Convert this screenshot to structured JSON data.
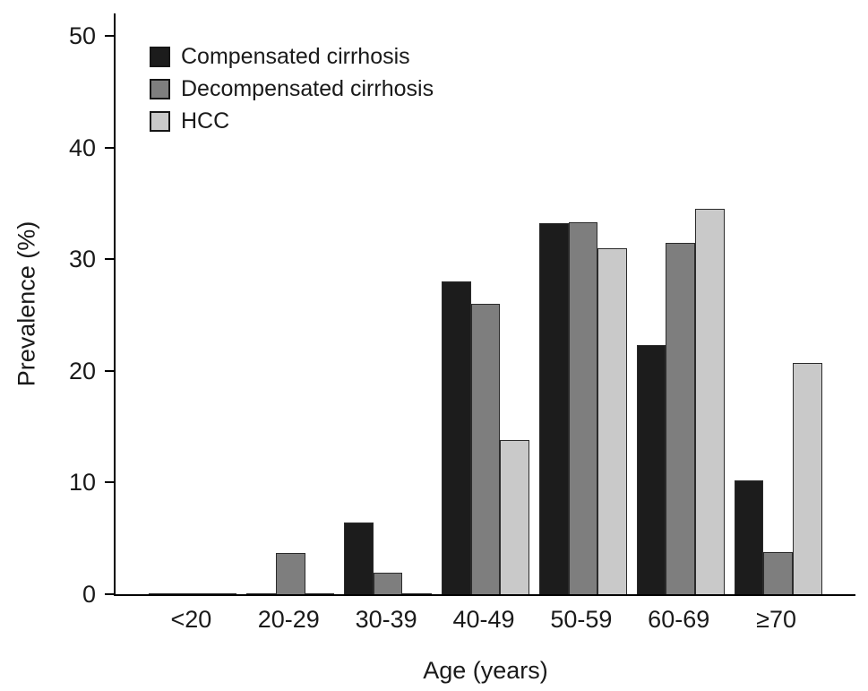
{
  "chart_data": {
    "type": "bar",
    "title": "",
    "xlabel": "Age (years)",
    "ylabel": "Prevalence (%)",
    "ylim": [
      0,
      50
    ],
    "yticks": [
      0,
      10,
      20,
      30,
      40,
      50
    ],
    "grid": false,
    "legend_position": "top-left",
    "categories": [
      "<20",
      "20-29",
      "30-39",
      "40-49",
      "50-59",
      "60-69",
      "≥70"
    ],
    "series": [
      {
        "name": "Compensated cirrhosis",
        "color": "#1c1c1c",
        "values": [
          0.1,
          0.1,
          6.4,
          28.0,
          33.2,
          22.3,
          10.2
        ]
      },
      {
        "name": "Decompensated cirrhosis",
        "color": "#7e7e7e",
        "values": [
          0.1,
          3.7,
          1.9,
          26.0,
          33.3,
          31.5,
          3.8
        ]
      },
      {
        "name": "HCC",
        "color": "#c9c9c9",
        "values": [
          0.1,
          0.1,
          0.1,
          13.8,
          31.0,
          34.5,
          20.7
        ]
      }
    ]
  }
}
